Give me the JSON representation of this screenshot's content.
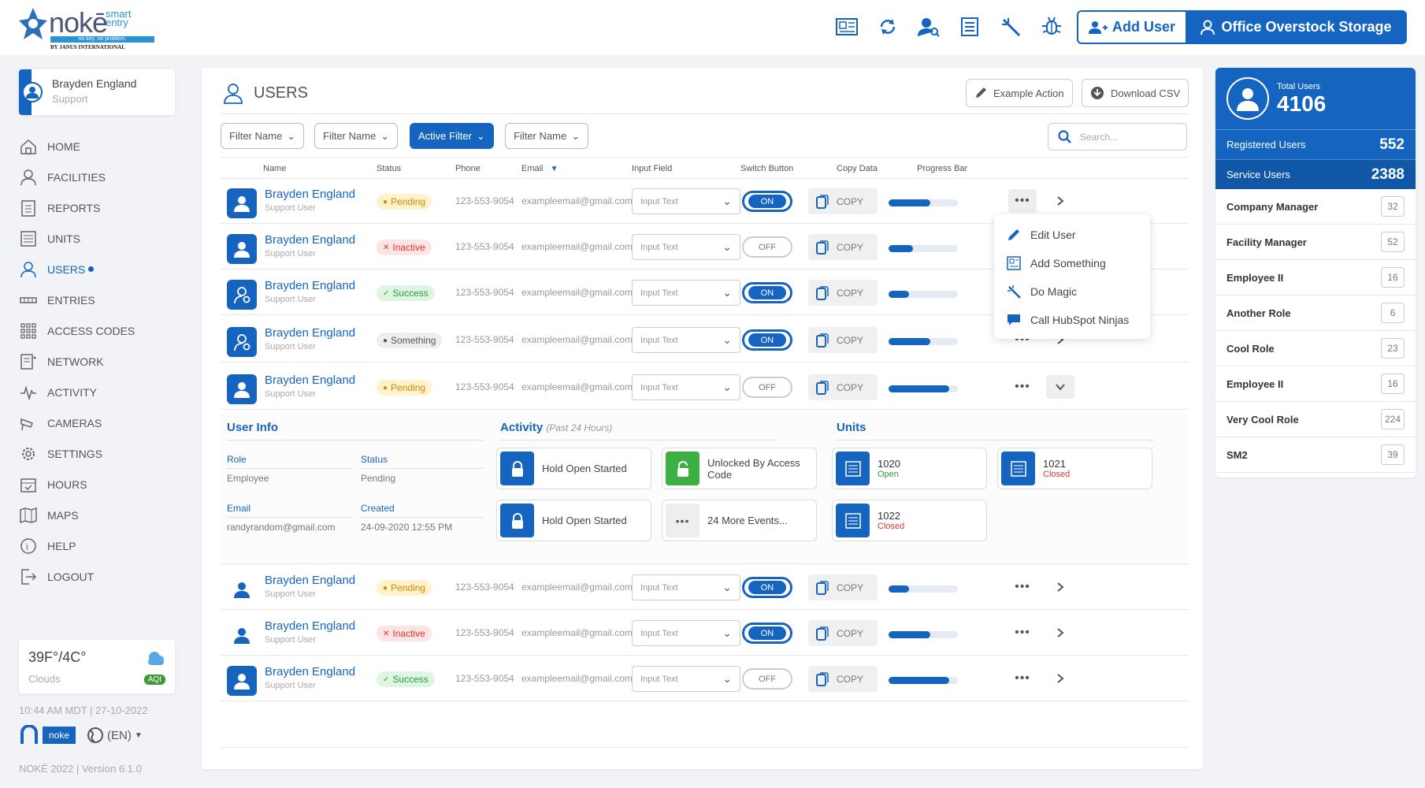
{
  "logo": {
    "brand": "nokē",
    "smart": "smart",
    "entry": "entry",
    "tagline": "no key. no problem.",
    "by": "BY JANUS INTERNATIONAL"
  },
  "header": {
    "add_user": "Add User",
    "office": "Office Overstock Storage"
  },
  "sidebar": {
    "user_name": "Brayden England",
    "user_role": "Support",
    "items": [
      {
        "label": "HOME"
      },
      {
        "label": "FACILITIES"
      },
      {
        "label": "REPORTS"
      },
      {
        "label": "UNITS"
      },
      {
        "label": "USERS"
      },
      {
        "label": "ENTRIES"
      },
      {
        "label": "ACCESS CODES"
      },
      {
        "label": "NETWORK"
      },
      {
        "label": "ACTIVITY"
      },
      {
        "label": "CAMERAS"
      },
      {
        "label": "SETTINGS"
      },
      {
        "label": "HOURS"
      },
      {
        "label": "MAPS"
      },
      {
        "label": "HELP"
      },
      {
        "label": "LOGOUT"
      }
    ],
    "weather_temp": "39F°/4C°",
    "weather_cond": "Clouds",
    "aqi": "AQI",
    "datetime": "10:44 AM MDT | 27-10-2022",
    "secured": "noke",
    "lang": "(EN)",
    "version": "NOKĒ 2022 | Version 6.1.0"
  },
  "main": {
    "title": "USERS",
    "example_action": "Example Action",
    "download_csv": "Download CSV",
    "filters": [
      "Filter Name",
      "Filter Name",
      "Active Filter",
      "Filter Name"
    ],
    "search_placeholder": "Search...",
    "columns": {
      "name": "Name",
      "status": "Status",
      "phone": "Phone",
      "email": "Email",
      "input": "Input Field",
      "switch": "Switch Button",
      "copy": "Copy Data",
      "progress": "Progress Bar"
    },
    "rows": [
      {
        "name": "Brayden England",
        "role": "Support User",
        "status": "Pending",
        "phone": "123-553-9054",
        "email": "exampleemail@gmail.com",
        "input": "Input Text",
        "switch": "ON",
        "copy": "COPY",
        "progress": 0.6
      },
      {
        "name": "Brayden England",
        "role": "Support User",
        "status": "Inactive",
        "phone": "123-553-9054",
        "email": "exampleemail@gmail.com",
        "input": "Input Text",
        "switch": "OFF",
        "copy": "COPY",
        "progress": 0.35
      },
      {
        "name": "Brayden England",
        "role": "Support User",
        "status": "Success",
        "phone": "123-553-9054",
        "email": "exampleemail@gmail.com",
        "input": "Input Text",
        "switch": "ON",
        "copy": "COPY",
        "progress": 0.3
      },
      {
        "name": "Brayden England",
        "role": "Support User",
        "status": "Something",
        "phone": "123-553-9054",
        "email": "exampleemail@gmail.com",
        "input": "Input Text",
        "switch": "ON",
        "copy": "COPY",
        "progress": 0.6
      },
      {
        "name": "Brayden England",
        "role": "Support User",
        "status": "Pending",
        "phone": "123-553-9054",
        "email": "exampleemail@gmail.com",
        "input": "Input Text",
        "switch": "OFF",
        "copy": "COPY",
        "progress": 0.87
      },
      {
        "name": "Brayden England",
        "role": "Support User",
        "status": "Pending",
        "phone": "123-553-9054",
        "email": "exampleemail@gmail.com",
        "input": "Input Text",
        "switch": "ON",
        "copy": "COPY",
        "progress": 0.3
      },
      {
        "name": "Brayden England",
        "role": "Support User",
        "status": "Inactive",
        "phone": "123-553-9054",
        "email": "exampleemail@gmail.com",
        "input": "Input Text",
        "switch": "ON",
        "copy": "COPY",
        "progress": 0.6
      },
      {
        "name": "Brayden England",
        "role": "Support User",
        "status": "Success",
        "phone": "123-553-9054",
        "email": "exampleemail@gmail.com",
        "input": "Input Text",
        "switch": "OFF",
        "copy": "COPY",
        "progress": 0.87
      }
    ],
    "menu": [
      "Edit User",
      "Add Something",
      "Do Magic",
      "Call HubSpot Ninjas"
    ],
    "detail": {
      "user_info": "User Info",
      "role_label": "Role",
      "role": "Employee",
      "status_label": "Status",
      "status": "Pending",
      "email_label": "Email",
      "email": "randyrandom@gmail.com",
      "created_label": "Created",
      "created": "24-09-2020 12:55 PM",
      "activity": "Activity",
      "activity_sub": "(Past 24 Hours)",
      "events": [
        "Hold Open Started",
        "Unlocked By Access Code",
        "Hold Open Started",
        "24 More Events..."
      ],
      "units_title": "Units",
      "units": [
        {
          "num": "1020",
          "status": "Open"
        },
        {
          "num": "1021",
          "status": "Closed"
        },
        {
          "num": "1022",
          "status": "Closed"
        }
      ]
    }
  },
  "right": {
    "total_label": "Total Users",
    "total": "4106",
    "registered_label": "Registered Users",
    "registered": "552",
    "service_label": "Service Users",
    "service": "2388",
    "roles": [
      {
        "name": "Company Manager",
        "count": "32"
      },
      {
        "name": "Facility Manager",
        "count": "52"
      },
      {
        "name": "Employee II",
        "count": "16"
      },
      {
        "name": "Another Role",
        "count": "6"
      },
      {
        "name": "Cool Role",
        "count": "23"
      },
      {
        "name": "Employee II",
        "count": "16"
      },
      {
        "name": "Very Cool Role",
        "count": "224"
      },
      {
        "name": "SM2",
        "count": "39"
      }
    ]
  },
  "colors": {
    "accent": "#1565c0",
    "success": "#2a9a3a",
    "pending": "#d08a00",
    "danger": "#dd3333"
  }
}
